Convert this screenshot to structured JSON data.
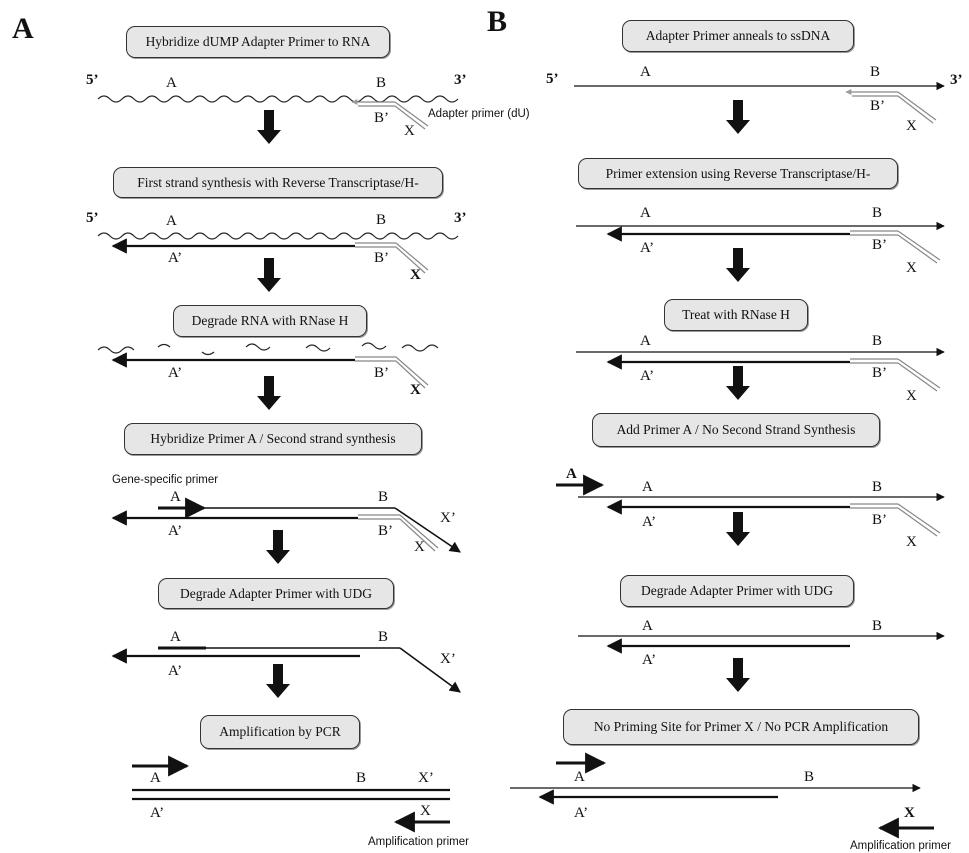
{
  "panels": {
    "a": {
      "letter": "A",
      "steps": [
        "Hybridize dUMP Adapter Primer to RNA",
        "First strand synthesis with Reverse Transcriptase/H-",
        "Degrade RNA with RNase H",
        "Hybridize Primer A / Second strand synthesis",
        "Degrade Adapter Primer with UDG",
        "Amplification by PCR"
      ],
      "labels": {
        "five_prime": "5’",
        "three_prime": "3’",
        "a": "A",
        "a_prime": "A’",
        "b": "B",
        "b_prime": "B’",
        "x": "X",
        "x_prime": "X’",
        "adapter_primer": "Adapter primer (dU)",
        "gene_specific_primer": "Gene-specific primer",
        "amplification_primer": "Amplification primer"
      }
    },
    "b": {
      "letter": "B",
      "steps": [
        "Adapter Primer anneals to ssDNA",
        "Primer extension using Reverse Transcriptase/H-",
        "Treat with RNase H",
        "Add Primer A / No  Second Strand Synthesis",
        "Degrade Adapter Primer with UDG",
        "No Priming Site for Primer X / No PCR Amplification"
      ],
      "labels": {
        "five_prime": "5’",
        "three_prime": "3’",
        "a": "A",
        "a_prime": "A’",
        "b": "B",
        "b_prime": "B’",
        "x": "X",
        "amplification_primer": "Amplification primer"
      }
    }
  }
}
